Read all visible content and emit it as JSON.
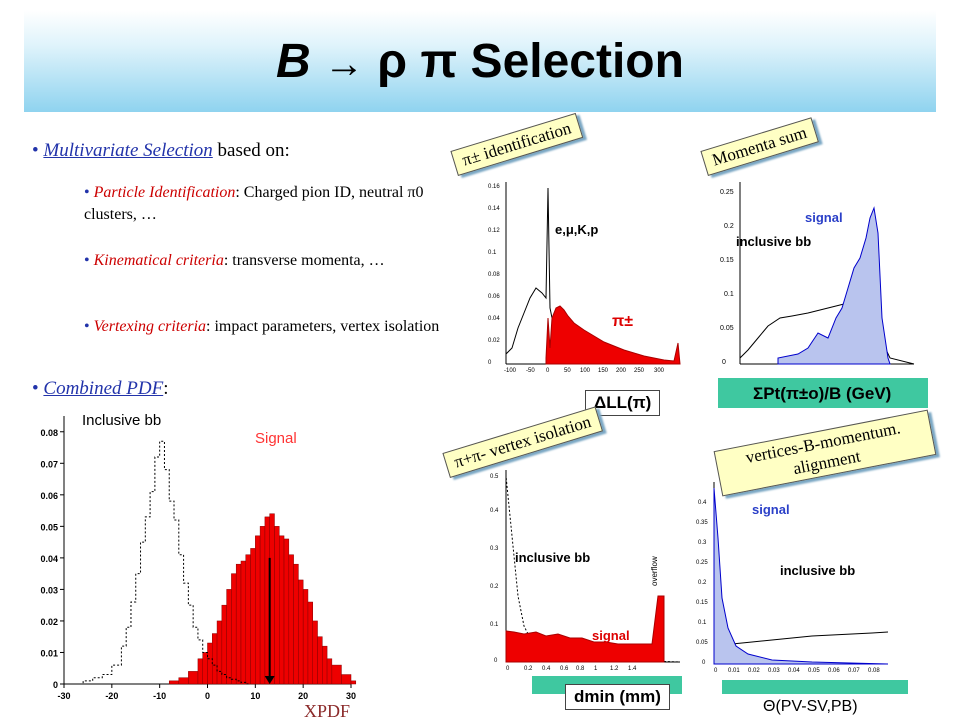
{
  "title": {
    "b": "B",
    "arrow": "→",
    "rho": "ρ",
    "pi": "π",
    "word": "Selection"
  },
  "intro": {
    "bullet": "•",
    "link": "Multivariate Selection",
    "rest": "based on:"
  },
  "criteria": [
    {
      "head": "Particle Identification",
      "text": ": Charged pion ID, neutral π0 clusters, …"
    },
    {
      "head": "Kinematical criteria",
      "text": ": transverse momenta, …"
    },
    {
      "head": "Vertexing criteria",
      "text": ": impact parameters, vertex isolation"
    }
  ],
  "combined": {
    "link": "Combined PDF",
    "colon": ":"
  },
  "main_chart": {
    "label_bb": "Inclusive bb",
    "label_signal": "Signal",
    "xaxis": "XPDF",
    "xticks": [
      "-30",
      "-20",
      "-10",
      "0",
      "10",
      "20",
      "30"
    ],
    "yticks": [
      "0",
      "0.01",
      "0.02",
      "0.03",
      "0.04",
      "0.05",
      "0.06",
      "0.07",
      "0.08"
    ]
  },
  "panels": {
    "pid": {
      "tag": "π± identification",
      "axis": "ΔLL(π)",
      "l1": "e,μ,K,p",
      "l2": "π±"
    },
    "mom": {
      "tag": "Momenta sum",
      "axis": "ΣPt(π±o)/B (GeV)",
      "l1": "signal",
      "l2": "inclusive bb"
    },
    "iso": {
      "tag": "π+π- vertex isolation",
      "axis": "dmin (mm)",
      "l1": "inclusive bb",
      "l2": "signal",
      "l3": "overflow"
    },
    "vtx": {
      "tag": "vertices-B-momentum. alignment",
      "axis": "Θ(PV-SV,PB)",
      "l1": "signal",
      "l2": "inclusive bb"
    }
  },
  "chart_data": {
    "type": "bar",
    "title": "",
    "xlabel": "XPDF",
    "ylabel": "",
    "xlim": [
      -30,
      30
    ],
    "ylim": [
      0,
      0.085
    ],
    "series": [
      {
        "name": "Inclusive bb",
        "style": "dotted-step",
        "x": [
          -30,
          -26,
          -24,
          -22,
          -20,
          -18,
          -17,
          -16,
          -15,
          -14,
          -13,
          -12,
          -11,
          -10,
          -9,
          -8,
          -7,
          -6,
          -5,
          -4,
          -3,
          -2,
          -1,
          0,
          1,
          2,
          3,
          4,
          5,
          6,
          7,
          8
        ],
        "values": [
          0,
          0.001,
          0.002,
          0.003,
          0.006,
          0.012,
          0.018,
          0.026,
          0.035,
          0.045,
          0.053,
          0.061,
          0.072,
          0.077,
          0.068,
          0.058,
          0.052,
          0.041,
          0.032,
          0.025,
          0.018,
          0.014,
          0.01,
          0.008,
          0.006,
          0.004,
          0.003,
          0.002,
          0.0015,
          0.001,
          0.0005,
          0
        ]
      },
      {
        "name": "Signal",
        "style": "red-filled",
        "x": [
          -8,
          -6,
          -4,
          -2,
          -1,
          0,
          1,
          2,
          3,
          4,
          5,
          6,
          7,
          8,
          9,
          10,
          11,
          12,
          13,
          14,
          15,
          16,
          17,
          18,
          19,
          20,
          21,
          22,
          23,
          24,
          25,
          26,
          28,
          30
        ],
        "values": [
          0.001,
          0.002,
          0.004,
          0.008,
          0.01,
          0.013,
          0.016,
          0.02,
          0.025,
          0.03,
          0.035,
          0.038,
          0.039,
          0.041,
          0.043,
          0.047,
          0.05,
          0.053,
          0.054,
          0.05,
          0.047,
          0.046,
          0.041,
          0.038,
          0.033,
          0.03,
          0.026,
          0.02,
          0.015,
          0.012,
          0.008,
          0.006,
          0.003,
          0.001
        ]
      }
    ],
    "annotations": [
      {
        "type": "arrow",
        "x": 13,
        "y_from": 0.04,
        "y_to": 0
      }
    ]
  }
}
